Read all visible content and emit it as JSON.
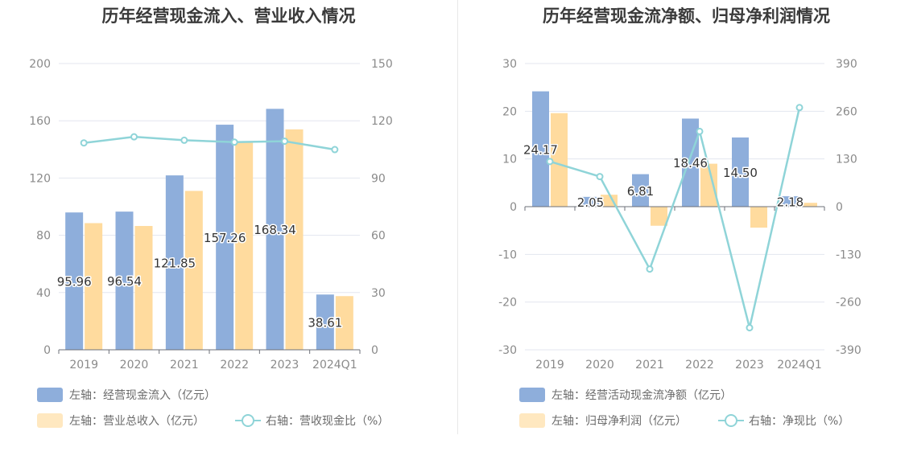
{
  "chart_data": [
    {
      "type": "bar",
      "title": "历年经营现金流入、营业收入情况",
      "categories": [
        "2019",
        "2020",
        "2021",
        "2022",
        "2023",
        "2024Q1"
      ],
      "y_left": {
        "ylim": [
          0,
          200
        ],
        "ticks": [
          "0",
          "40",
          "80",
          "120",
          "160",
          "200"
        ]
      },
      "y_right": {
        "ylim": [
          0,
          150
        ],
        "ticks": [
          "0",
          "30",
          "60",
          "90",
          "120",
          "150"
        ]
      },
      "series": [
        {
          "name": "左轴：经营现金流入（亿元）",
          "kind": "bar",
          "axis": "left",
          "color": "#8eaedb",
          "values": [
            95.96,
            96.54,
            121.85,
            157.26,
            168.34,
            38.61
          ],
          "labels": [
            "95.96",
            "96.54",
            "121.85",
            "157.26",
            "168.34",
            "38.61"
          ]
        },
        {
          "name": "左轴：营业总收入（亿元）",
          "kind": "bar",
          "axis": "left",
          "color": "#ffdb9e",
          "values": [
            88.5,
            86.5,
            111.0,
            145.5,
            154.0,
            37.5
          ]
        },
        {
          "name": "右轴：营收现金比（%）",
          "kind": "line",
          "axis": "right",
          "color": "#8fd4d8",
          "values": [
            108.4,
            111.6,
            109.8,
            108.8,
            109.3,
            104.9
          ]
        }
      ],
      "legend": "bottom-left",
      "grid": true
    },
    {
      "type": "bar",
      "title": "历年经营现金流净额、归母净利润情况",
      "categories": [
        "2019",
        "2020",
        "2021",
        "2022",
        "2023",
        "2024Q1"
      ],
      "y_left": {
        "ylim": [
          -30,
          30
        ],
        "ticks": [
          "-30",
          "-20",
          "-10",
          "0",
          "10",
          "20",
          "30"
        ]
      },
      "y_right": {
        "ylim": [
          -390,
          390
        ],
        "ticks": [
          "-390",
          "-260",
          "-130",
          "0",
          "130",
          "260",
          "390"
        ]
      },
      "series": [
        {
          "name": "左轴：经营活动现金流净额（亿元）",
          "kind": "bar",
          "axis": "left",
          "color": "#8eaedb",
          "values": [
            24.17,
            2.05,
            6.81,
            18.46,
            14.5,
            2.18
          ],
          "labels": [
            "24.17",
            "2.05",
            "6.81",
            "18.46",
            "14.50",
            "2.18"
          ]
        },
        {
          "name": "左轴：归母净利润（亿元）",
          "kind": "bar",
          "axis": "left",
          "color": "#ffdb9e",
          "values": [
            19.6,
            2.5,
            -4.0,
            9.0,
            -4.4,
            0.8
          ]
        },
        {
          "name": "右轴：净现比（%）",
          "kind": "line",
          "axis": "right",
          "color": "#8fd4d8",
          "values": [
            123,
            82,
            -170,
            205,
            -330,
            270
          ]
        }
      ],
      "legend": "bottom-left",
      "grid": true
    }
  ]
}
